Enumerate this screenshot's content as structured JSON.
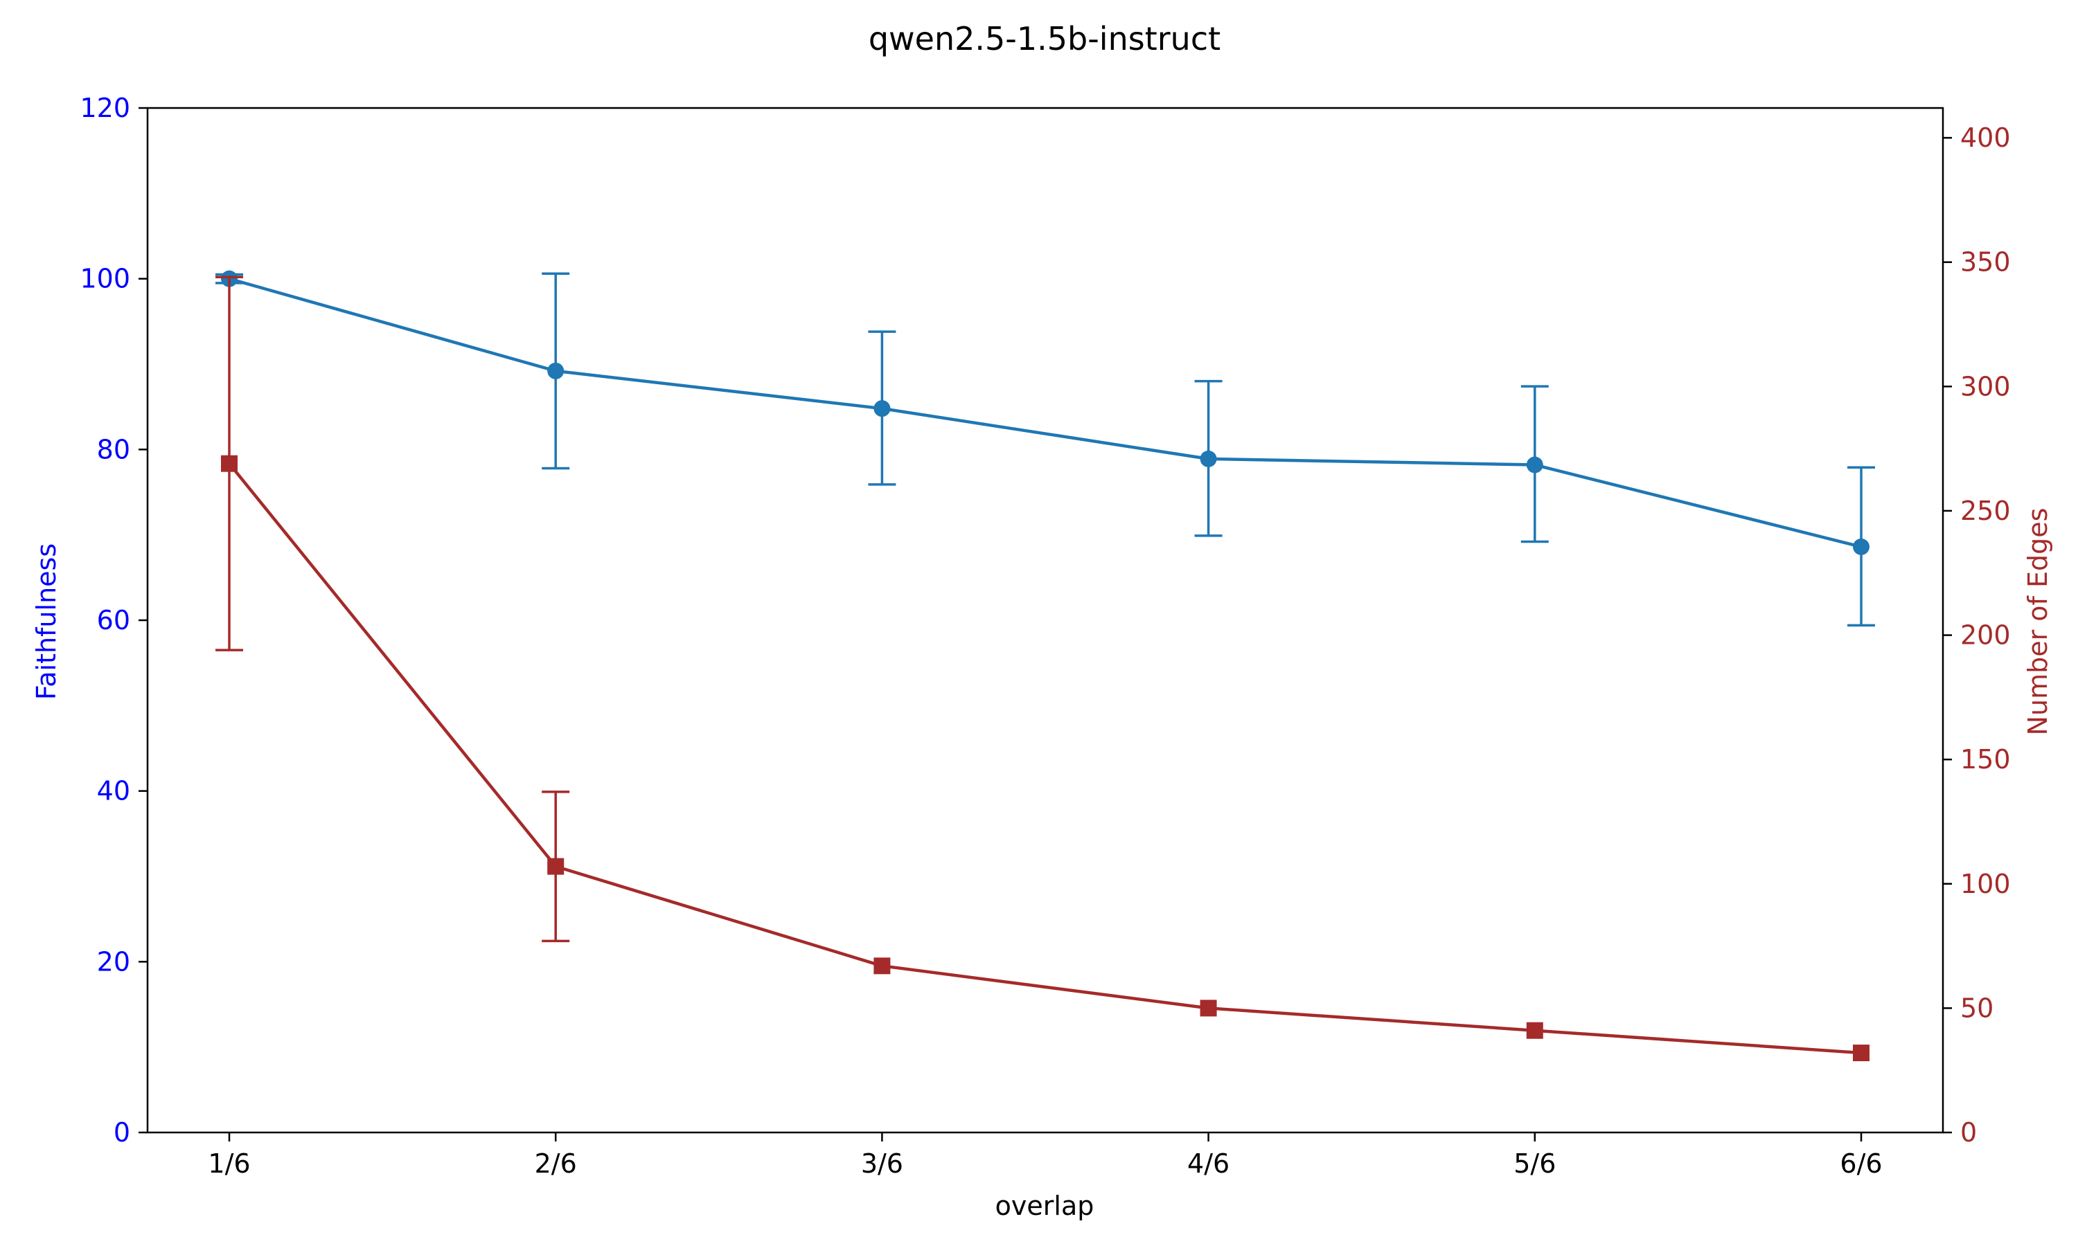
{
  "chart_data": {
    "type": "line",
    "title": "qwen2.5-1.5b-instruct",
    "xlabel": "overlap",
    "categories": [
      "1/6",
      "2/6",
      "3/6",
      "4/6",
      "5/6",
      "6/6"
    ],
    "y_left": {
      "label": "Faithfulness",
      "ylim": [
        0,
        120
      ],
      "ticks": [
        0,
        20,
        40,
        60,
        80,
        100,
        120
      ],
      "color": "#0000ff"
    },
    "y_right": {
      "label": "Number of Edges",
      "ylim": [
        0,
        412
      ],
      "ticks": [
        0,
        50,
        100,
        150,
        200,
        250,
        300,
        350,
        400
      ],
      "color": "#a52a2a"
    },
    "series": [
      {
        "axis": "left",
        "marker": "circle",
        "color": "#1f77b4",
        "values": [
          100.0,
          89.2,
          84.8,
          78.9,
          78.2,
          68.6
        ],
        "err_low": [
          99.5,
          77.8,
          75.9,
          69.9,
          69.2,
          59.4
        ],
        "err_high": [
          100.5,
          100.6,
          93.8,
          88.0,
          87.4,
          77.9
        ]
      },
      {
        "axis": "right",
        "marker": "square",
        "color": "#a52a2a",
        "values": [
          269,
          107,
          67,
          50,
          41,
          32
        ],
        "err_low": [
          194,
          77,
          null,
          null,
          null,
          null
        ],
        "err_high": [
          344,
          137,
          null,
          null,
          null,
          null
        ]
      }
    ],
    "grid": false
  }
}
